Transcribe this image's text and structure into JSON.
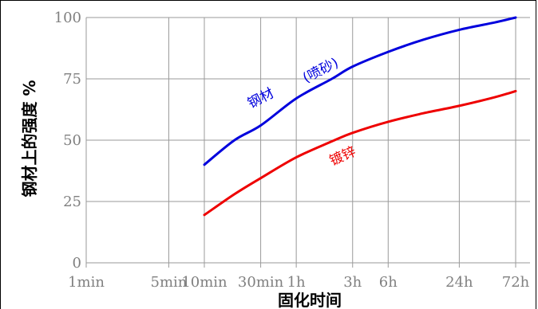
{
  "chart_data": {
    "type": "line",
    "xlabel": "固化时间",
    "ylabel": "钢材上的强度 %",
    "x_scale": "log",
    "x_ticks": [
      "1min",
      "5min",
      "10min",
      "30min",
      "1h",
      "3h",
      "6h",
      "24h",
      "72h"
    ],
    "x_tick_minutes": [
      1,
      5,
      10,
      30,
      60,
      180,
      360,
      1440,
      4320
    ],
    "y_ticks": [
      0,
      25,
      50,
      75,
      100
    ],
    "ylim": [
      0,
      100
    ],
    "grid": true,
    "series": [
      {
        "name": "钢材（喷砂）",
        "label_parts": [
          "钢材",
          "(喷砂)"
        ],
        "color": "#0000dd",
        "x_minutes": [
          10,
          18,
          30,
          60,
          120,
          180,
          360,
          720,
          1440,
          2880,
          4320
        ],
        "values": [
          40,
          50,
          56,
          67,
          75,
          80,
          86,
          91,
          95,
          98,
          100
        ]
      },
      {
        "name": "镀锌",
        "color": "#ee0000",
        "x_minutes": [
          10,
          18,
          30,
          60,
          120,
          180,
          360,
          720,
          1440,
          2880,
          4320
        ],
        "values": [
          19.5,
          28,
          34.5,
          43,
          49.5,
          53,
          57.5,
          61,
          64,
          67.5,
          70
        ]
      }
    ]
  }
}
